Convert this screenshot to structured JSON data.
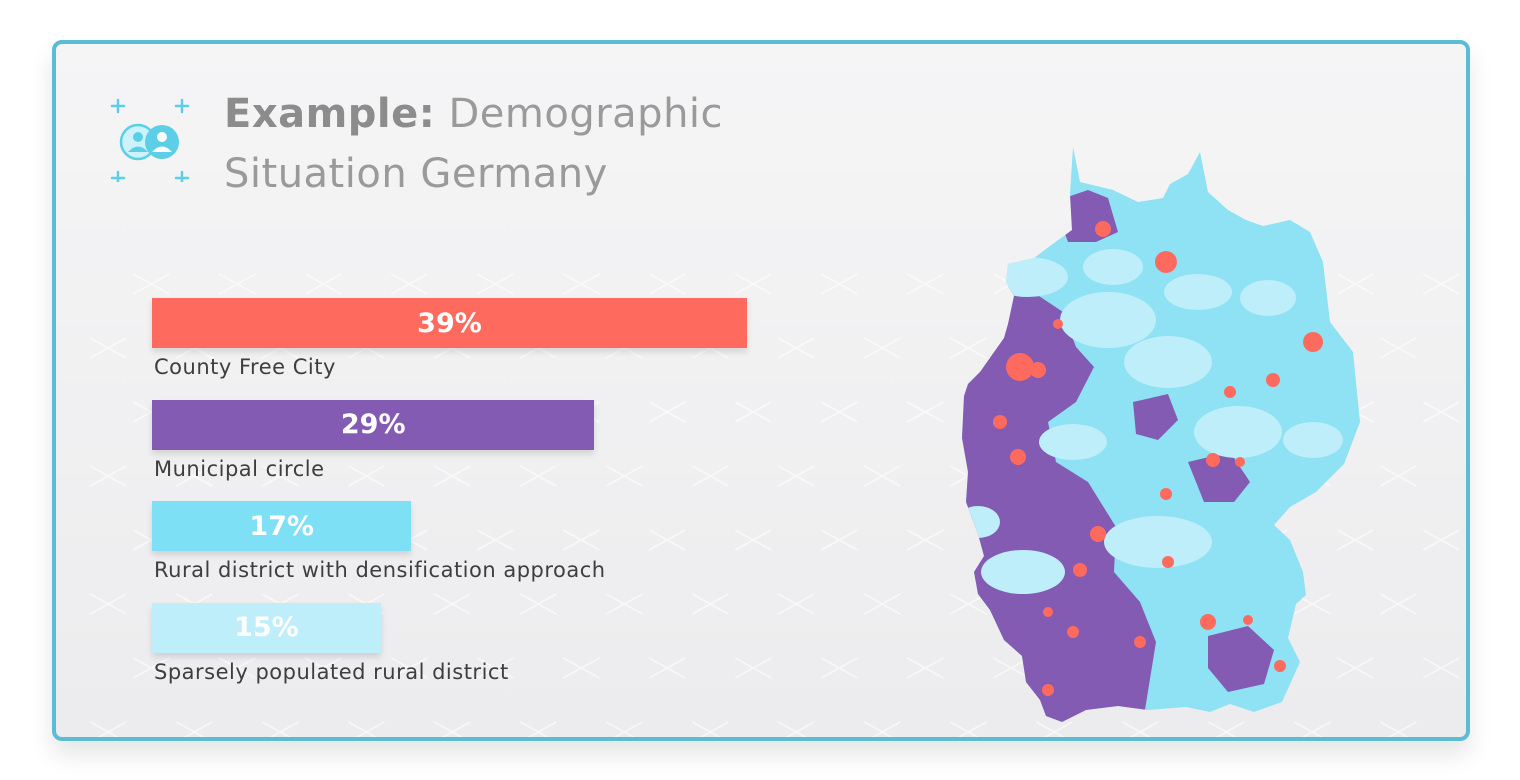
{
  "title": {
    "bold": "Example:",
    "rest": "Demographic Situation Germany",
    "line1": "Demographic",
    "line2": "Situation Germany"
  },
  "colors": {
    "county_free_city": "#ff6a5f",
    "municipal_circle": "#835bb3",
    "rural_densification": "#7ee0f5",
    "sparsely_populated": "#bdeef9",
    "frame": "#5bbcd6",
    "logo": "#5ccfe6"
  },
  "icons": {
    "logo": "users-icon"
  },
  "chart_data": {
    "type": "bar",
    "orientation": "horizontal",
    "categories": [
      "County Free City",
      "Municipal circle",
      "Rural district with densification approach",
      "Sparsely populated rural district"
    ],
    "values": [
      39,
      29,
      17,
      15
    ],
    "value_labels": [
      "39%",
      "29%",
      "17%",
      "15%"
    ],
    "xlim": [
      0,
      39
    ],
    "grid": false,
    "legend": "none"
  },
  "map": {
    "subject": "Germany",
    "shows": "district types"
  }
}
